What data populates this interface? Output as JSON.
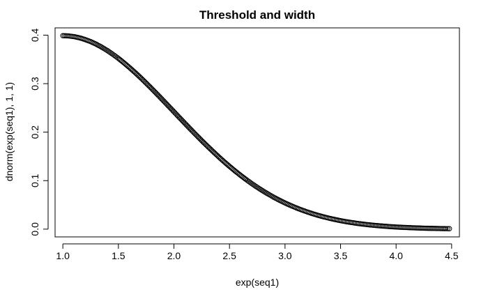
{
  "chart_data": {
    "type": "scatter",
    "title": "Threshold and width",
    "xlabel": "exp(seq1)",
    "ylabel": "dnorm(exp(seq1), 1, 1)",
    "xlim": [
      0.93,
      4.57
    ],
    "ylim": [
      -0.016,
      0.415
    ],
    "x_ticks": [
      "1.0",
      "1.5",
      "2.0",
      "2.5",
      "3.0",
      "3.5",
      "4.0",
      "4.5"
    ],
    "y_ticks": [
      "0.0",
      "0.1",
      "0.2",
      "0.3",
      "0.4"
    ],
    "grid": false,
    "legend": "none",
    "point_style": "open circle",
    "series": [
      {
        "x": [
          1.0,
          1.05,
          1.1,
          1.15,
          1.2,
          1.25,
          1.3,
          1.35,
          1.4,
          1.45,
          1.5,
          1.55,
          1.6,
          1.65,
          1.7,
          1.75,
          1.8,
          1.85,
          1.9,
          1.95,
          2.0,
          2.05,
          2.1,
          2.15,
          2.2,
          2.25,
          2.3,
          2.35,
          2.4,
          2.45,
          2.5,
          2.55,
          2.6,
          2.65,
          2.7,
          2.75,
          2.8,
          2.85,
          2.9,
          2.95,
          3.0,
          3.05,
          3.1,
          3.15,
          3.2,
          3.25,
          3.3,
          3.35,
          3.4,
          3.45,
          3.5,
          3.55,
          3.6,
          3.65,
          3.7,
          3.75,
          3.8,
          3.85,
          3.9,
          3.95,
          4.0,
          4.05,
          4.1,
          4.15,
          4.2,
          4.25,
          4.3,
          4.35,
          4.4,
          4.45,
          4.48
        ],
        "y": [
          0.3989,
          0.3984,
          0.397,
          0.3945,
          0.391,
          0.3867,
          0.3814,
          0.3752,
          0.3683,
          0.3605,
          0.3521,
          0.3429,
          0.3332,
          0.323,
          0.3123,
          0.3011,
          0.2897,
          0.278,
          0.2661,
          0.2541,
          0.242,
          0.2299,
          0.2179,
          0.2059,
          0.1942,
          0.1826,
          0.1714,
          0.1604,
          0.1497,
          0.1394,
          0.1295,
          0.12,
          0.1109,
          0.1023,
          0.094,
          0.0863,
          0.079,
          0.0721,
          0.0656,
          0.0596,
          0.054,
          0.0488,
          0.044,
          0.0396,
          0.0355,
          0.0317,
          0.0283,
          0.0252,
          0.0224,
          0.0198,
          0.0175,
          0.0154,
          0.0136,
          0.0119,
          0.0104,
          0.0091,
          0.0079,
          0.0069,
          0.006,
          0.0051,
          0.0044,
          0.0038,
          0.0033,
          0.0028,
          0.0024,
          0.002,
          0.0017,
          0.0015,
          0.0012,
          0.001,
          0.0009
        ]
      }
    ]
  }
}
